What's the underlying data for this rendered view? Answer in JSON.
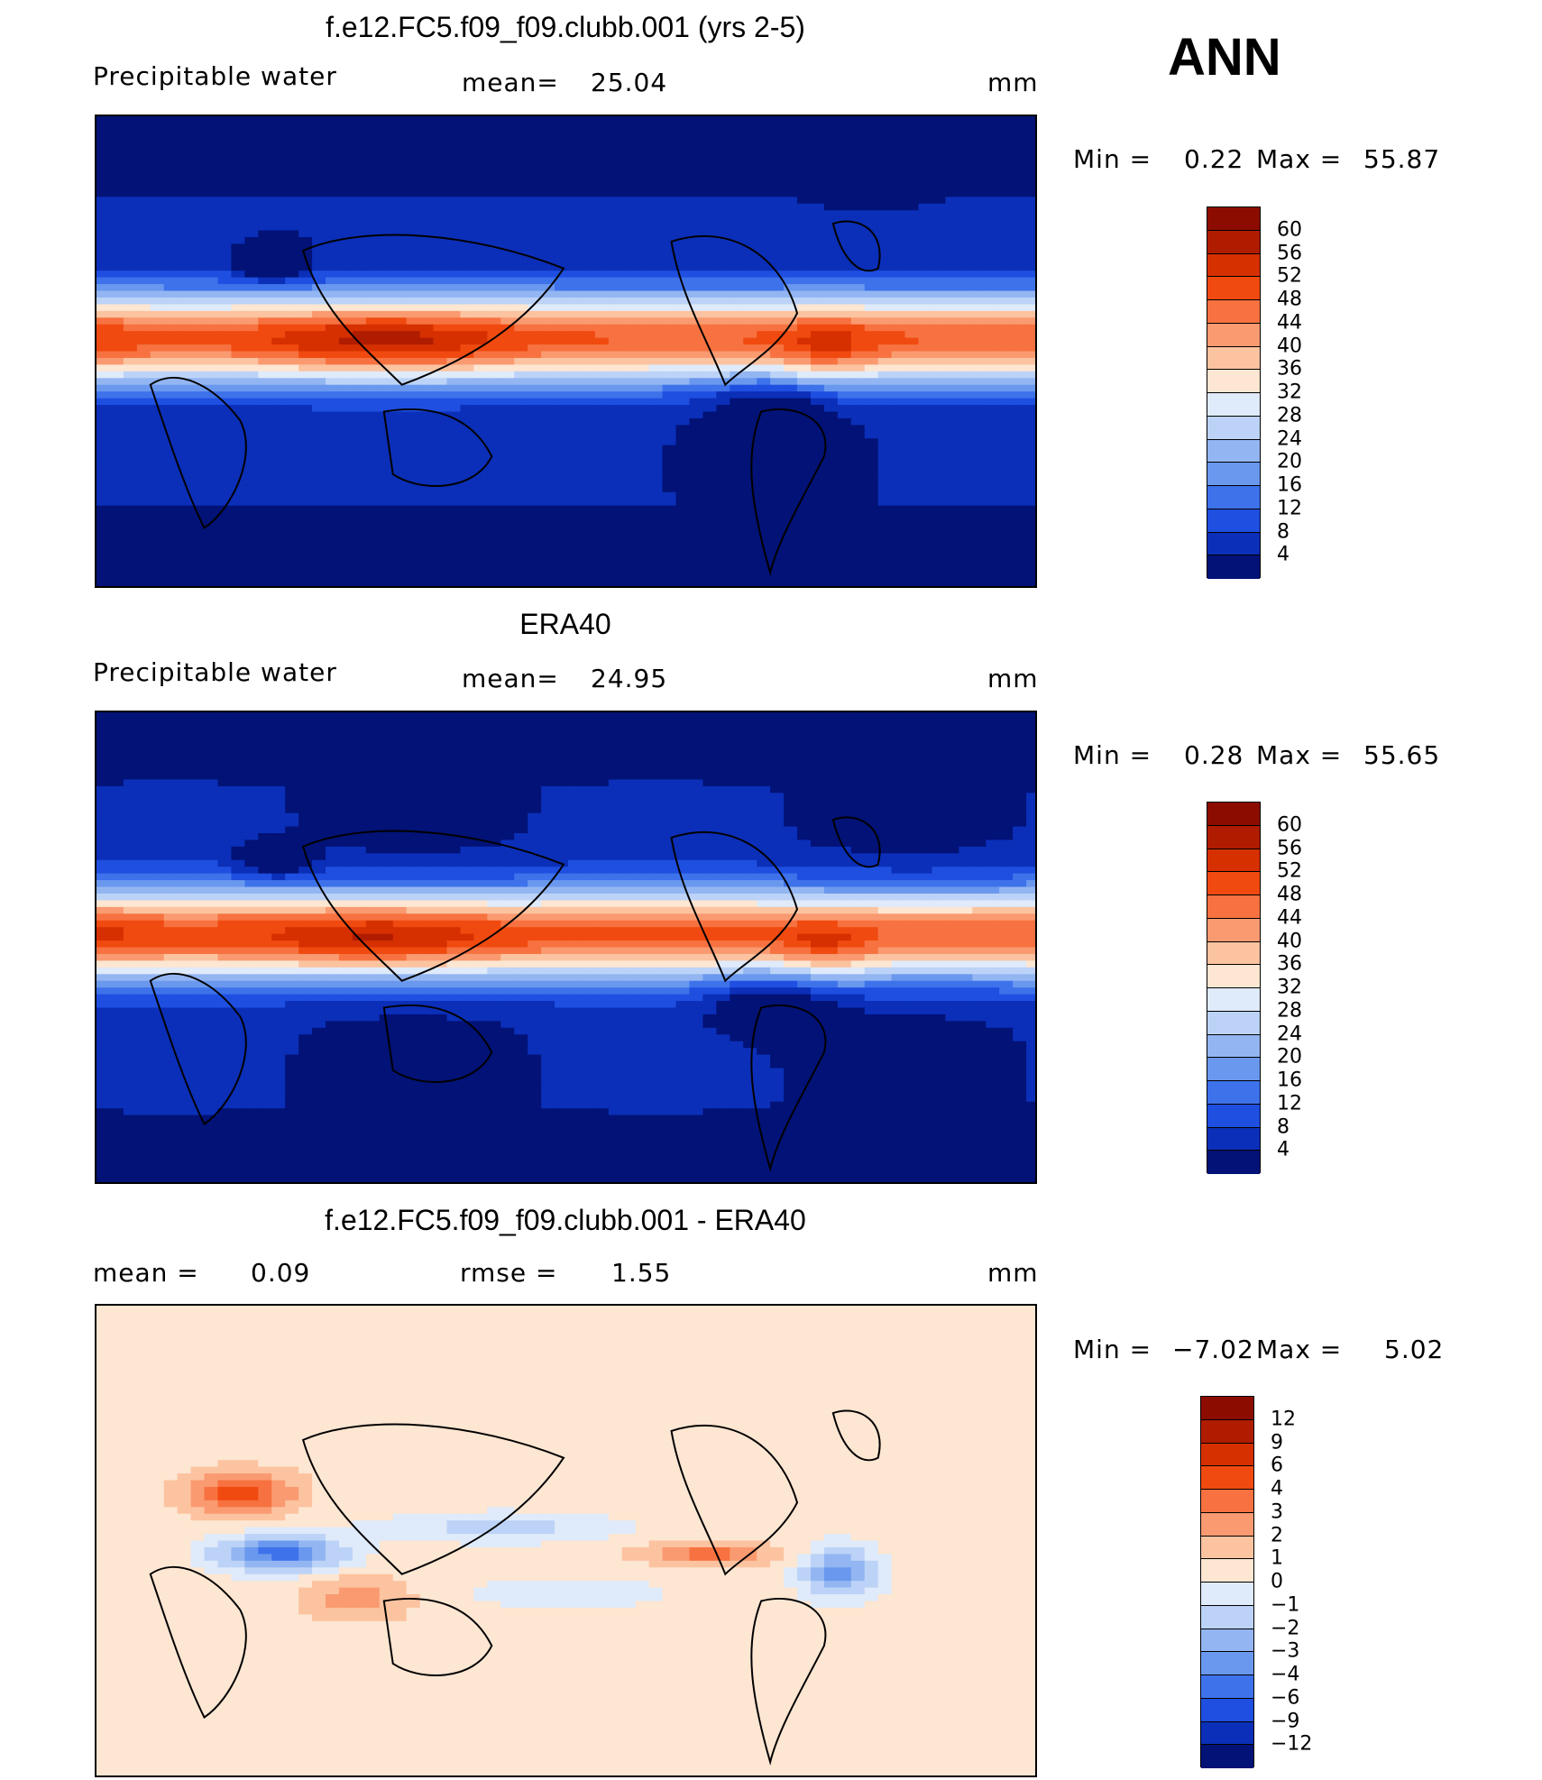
{
  "season": "ANN",
  "panels": [
    {
      "title": "f.e12.FC5.f09_f09.clubb.001 (yrs 2-5)",
      "left_label": "Precipitable  water",
      "stat_label": "mean=",
      "stat_value": "25.04",
      "units": "mm",
      "min_label": "Min  =",
      "min_value": "0.22",
      "max_label": "Max  =",
      "max_value": "55.87",
      "palette": "abs",
      "field": "model",
      "ticks": [
        "60",
        "56",
        "52",
        "48",
        "44",
        "40",
        "36",
        "32",
        "28",
        "24",
        "20",
        "16",
        "12",
        "8",
        "4"
      ]
    },
    {
      "title": "ERA40",
      "left_label": "Precipitable  water",
      "stat_label": "mean=",
      "stat_value": "24.95",
      "units": "mm",
      "min_label": "Min  =",
      "min_value": "0.28",
      "max_label": "Max  =",
      "max_value": "55.65",
      "palette": "abs",
      "field": "obs",
      "ticks": [
        "60",
        "56",
        "52",
        "48",
        "44",
        "40",
        "36",
        "32",
        "28",
        "24",
        "20",
        "16",
        "12",
        "8",
        "4"
      ]
    },
    {
      "title": "f.e12.FC5.f09_f09.clubb.001 - ERA40",
      "left_label": "mean  =",
      "left_value": "0.09",
      "stat_label": "rmse  =",
      "stat_value": "1.55",
      "units": "mm",
      "min_label": "Min  =",
      "min_value": "−7.02",
      "max_label": "Max  =",
      "max_value": "5.02",
      "palette": "diff",
      "field": "diff",
      "ticks": [
        "12",
        "9",
        "6",
        "4",
        "3",
        "2",
        "1",
        "0",
        "−1",
        "−2",
        "−3",
        "−4",
        "−6",
        "−9",
        "−12"
      ]
    }
  ],
  "palettes": {
    "abs": [
      "#8c0c00",
      "#b01c00",
      "#d63000",
      "#f04a10",
      "#f77240",
      "#fa9a70",
      "#fcc3a0",
      "#fde6d2",
      "#dfeafa",
      "#bcd3f7",
      "#93b6f2",
      "#6a98ee",
      "#3e72eb",
      "#1f4fe0",
      "#0b2fb8",
      "#021276"
    ],
    "diff": [
      "#8c0c00",
      "#b01c00",
      "#d63000",
      "#f04a10",
      "#f77240",
      "#fa9a70",
      "#fcc3a0",
      "#fde6d2",
      "#dfeafa",
      "#bcd3f7",
      "#93b6f2",
      "#6a98ee",
      "#3e72eb",
      "#1f4fe0",
      "#0b2fb8",
      "#021276"
    ]
  }
}
